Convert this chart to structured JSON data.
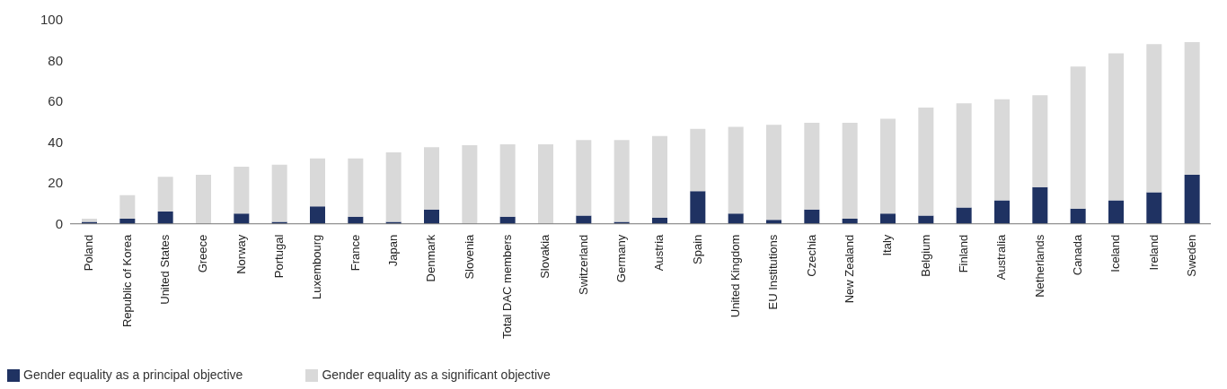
{
  "chart_data": {
    "type": "bar",
    "stacked": true,
    "categories": [
      "Poland",
      "Republic of Korea",
      "United States",
      "Greece",
      "Norway",
      "Portugal",
      "Luxembourg",
      "France",
      "Japan",
      "Denmark",
      "Slovenia",
      "Total DAC members",
      "Slovakia",
      "Switzerland",
      "Germany",
      "Austria",
      "Spain",
      "United Kingdom",
      "EU Institutions",
      "Czechia",
      "New Zealand",
      "Italy",
      "Belgium",
      "Finland",
      "Australia",
      "Netherlands",
      "Canada",
      "Iceland",
      "Ireland",
      "Sweden"
    ],
    "series": [
      {
        "name": "Gender equality as a principal objective",
        "color": "#1f3262",
        "values": [
          1,
          2.5,
          6,
          0,
          5,
          1,
          8.5,
          3.5,
          1,
          7,
          0,
          3.5,
          0,
          4,
          1,
          3,
          16,
          5,
          2,
          7,
          2.5,
          5,
          4,
          8,
          11.5,
          18,
          7.5,
          11.5,
          15.5,
          24
        ]
      },
      {
        "name": "Gender equality as a significant objective",
        "color": "#d9d9d9",
        "values": [
          1.5,
          11.5,
          17,
          24,
          23,
          28,
          23.5,
          28.5,
          34,
          30.5,
          38.5,
          35.5,
          39,
          37,
          40,
          40,
          30.5,
          42.5,
          46.5,
          42.5,
          47,
          46.5,
          53,
          51,
          49.5,
          45,
          69.5,
          72,
          72.5,
          65
        ]
      }
    ],
    "ylim": [
      0,
      100
    ],
    "yticks": [
      0,
      20,
      40,
      60,
      80,
      100
    ],
    "grid": false,
    "legend": "bottom left"
  }
}
